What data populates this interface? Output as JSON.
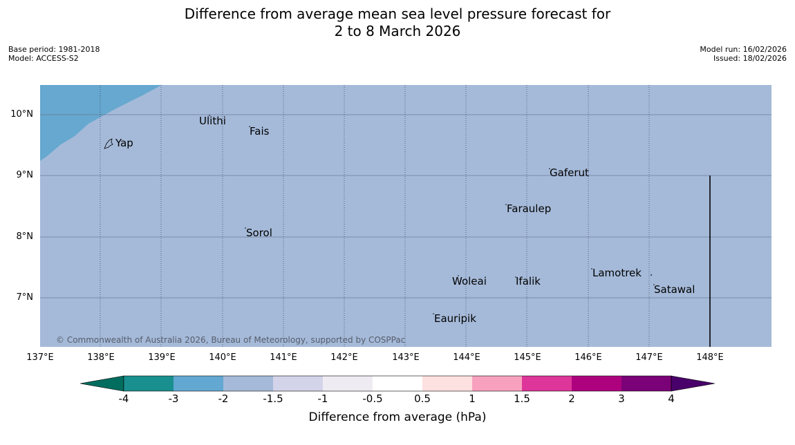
{
  "title_line1": "Difference from average mean sea level pressure forecast for",
  "title_line2": "2 to 8 March 2026",
  "base_period": "Base period: 1981-2018",
  "model": "Model: ACCESS-S2",
  "model_run": "Model run: 16/02/2026",
  "issued": "Issued: 18/02/2026",
  "copyright": "© Commonwealth of Australia 2026, Bureau of Meteorology, supported by COSPPac",
  "places": {
    "yap": "Yap",
    "ulithi": "Ulithi",
    "fais": "Fais",
    "gaferut": "Gaferut",
    "faraulep": "Faraulep",
    "sorol": "Sorol",
    "lamotrek": "Lamotrek",
    "woleai": "Woleai",
    "ifalik": "Ifalik",
    "satawal": "Satawal",
    "eauripik": "Eauripik"
  },
  "lat_labels": [
    "10°N",
    "9°N",
    "8°N",
    "7°N"
  ],
  "lon_labels": [
    "137°E",
    "138°E",
    "139°E",
    "140°E",
    "141°E",
    "142°E",
    "143°E",
    "144°E",
    "145°E",
    "146°E",
    "147°E",
    "148°E"
  ],
  "map_values": {
    "background_class": "-2 to -1.5",
    "northwest_corner_class": "-3 to -2"
  },
  "colorbar": {
    "label": "Difference from average (hPa)",
    "ticks": [
      "-4",
      "-3",
      "-2",
      "-1.5",
      "-1",
      "-0.5",
      "0.5",
      "1",
      "1.5",
      "2",
      "3",
      "4"
    ],
    "colors": [
      "#1a8f8f",
      "#63a8d2",
      "#a5bad9",
      "#d3d3e9",
      "#efebf3",
      "#ffffff",
      "#fde0e0",
      "#f7a1bf",
      "#dd3599",
      "#ad017e",
      "#7a0177"
    ],
    "under_color": "#016d5e",
    "over_color": "#49006a"
  }
}
